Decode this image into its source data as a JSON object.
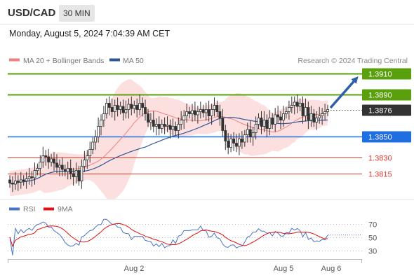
{
  "header": {
    "symbol": "USD/CAD",
    "timeframe": "30 MIN",
    "timestamp": "Monday, August 5, 2024 7:04:39 AM CET"
  },
  "chart_data": [
    {
      "type": "candlestick",
      "legend": [
        {
          "label": "MA 20 + Bollinger Bands",
          "color": "#f08080"
        },
        {
          "label": "MA 50",
          "color": "#2f5597"
        }
      ],
      "watermark": "Research © 2024 Trading Central",
      "ylim": [
        1.3795,
        1.3915
      ],
      "x_labels": [
        "Aug 2",
        "Aug 5",
        "Aug 6"
      ],
      "levels": [
        {
          "label": "1.3910",
          "value": 1.391,
          "kind": "resistance",
          "color": "#5aa00c"
        },
        {
          "label": "1.3890",
          "value": 1.389,
          "kind": "resistance",
          "color": "#5aa00c"
        },
        {
          "label": "1.3876",
          "value": 1.3876,
          "kind": "current",
          "color": "#333333"
        },
        {
          "label": "1.3850",
          "value": 1.385,
          "kind": "pivot",
          "color": "#1f6fe0"
        },
        {
          "label": "1.3830",
          "value": 1.383,
          "kind": "support",
          "color": "#e23b2e"
        },
        {
          "label": "1.3815",
          "value": 1.3815,
          "kind": "support",
          "color": "#e23b2e"
        }
      ],
      "closes": [
        1.3806,
        1.3805,
        1.3808,
        1.3807,
        1.3809,
        1.3808,
        1.381,
        1.3812,
        1.3811,
        1.3818,
        1.382,
        1.3826,
        1.3832,
        1.3831,
        1.3826,
        1.3829,
        1.3825,
        1.3821,
        1.3823,
        1.3819,
        1.3817,
        1.382,
        1.3815,
        1.3812,
        1.3818,
        1.3808,
        1.3822,
        1.3828,
        1.3832,
        1.3838,
        1.3845,
        1.385,
        1.386,
        1.3866,
        1.3872,
        1.3882,
        1.3878,
        1.3874,
        1.388,
        1.3876,
        1.3879,
        1.3873,
        1.3876,
        1.3881,
        1.3877,
        1.388,
        1.3876,
        1.3882,
        1.3878,
        1.3872,
        1.3864,
        1.3866,
        1.386,
        1.3862,
        1.3858,
        1.3862,
        1.386,
        1.3861,
        1.3857,
        1.386,
        1.3856,
        1.3862,
        1.3866,
        1.387,
        1.3874,
        1.3872,
        1.3875,
        1.3871,
        1.3874,
        1.3876,
        1.3873,
        1.3876,
        1.387,
        1.3876,
        1.388,
        1.3874,
        1.3868,
        1.3856,
        1.3846,
        1.384,
        1.3848,
        1.3844,
        1.3841,
        1.3848,
        1.3845,
        1.3852,
        1.3857,
        1.385,
        1.3854,
        1.3862,
        1.3868,
        1.386,
        1.3866,
        1.3858,
        1.3868,
        1.3862,
        1.3871,
        1.3869,
        1.3866,
        1.3872,
        1.3874,
        1.3878,
        1.388,
        1.3883,
        1.3879,
        1.3882,
        1.387,
        1.3878,
        1.3866,
        1.3872,
        1.3864,
        1.3868,
        1.387,
        1.3872,
        1.3874,
        1.3876
      ],
      "rsi": {
        "legend": [
          {
            "label": "RSI",
            "color": "#4a72c6"
          },
          {
            "label": "9MA",
            "color": "#e01010"
          }
        ],
        "ylim": [
          20,
          80
        ],
        "ticks": [
          "70",
          "50",
          "30"
        ],
        "tick_values": [
          70,
          50,
          30
        ]
      }
    }
  ]
}
